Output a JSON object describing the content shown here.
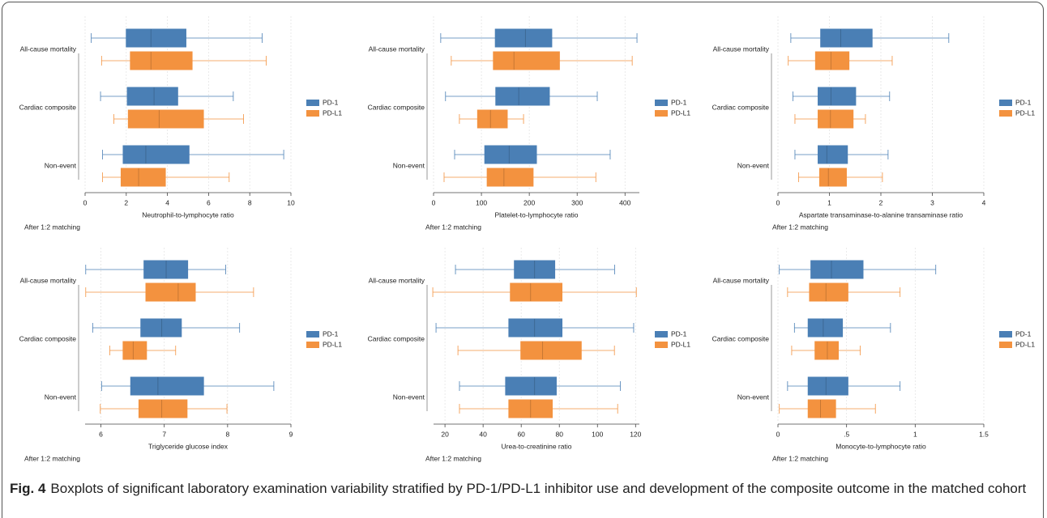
{
  "chart_data": [
    {
      "type": "box",
      "xlabel": "Neutrophil-to-lymphocyte ratio",
      "note": "After 1:2 matching",
      "categories": [
        "All-cause mortality",
        "Cardiac composite",
        "Non-event"
      ],
      "xlim": [
        0,
        10
      ],
      "xticks": [
        0,
        2,
        4,
        6,
        8,
        10
      ],
      "grid": true,
      "series": [
        {
          "name": "PD-1",
          "color": "#4a7fb5",
          "low": [
            0.3,
            0.75,
            0.85
          ],
          "q1": [
            2.0,
            2.05,
            1.85
          ],
          "median": [
            3.2,
            3.35,
            2.95
          ],
          "q3": [
            4.9,
            4.5,
            5.05
          ],
          "high": [
            8.6,
            7.2,
            9.65
          ]
        },
        {
          "name": "PD-L1",
          "color": "#f3923f",
          "low": [
            0.8,
            1.4,
            0.85
          ],
          "q1": [
            2.2,
            2.1,
            1.75
          ],
          "median": [
            3.2,
            3.6,
            2.6
          ],
          "q3": [
            5.2,
            5.75,
            3.9
          ],
          "high": [
            8.8,
            7.7,
            7.0
          ]
        }
      ]
    },
    {
      "type": "box",
      "xlabel": "Platelet-to-lymphocyte ratio",
      "note": "After 1:2 matching",
      "categories": [
        "All-cause mortality",
        "Cardiac composite",
        "Non-event"
      ],
      "xlim": [
        0,
        430
      ],
      "xticks": [
        0,
        100,
        200,
        300,
        400
      ],
      "grid": true,
      "series": [
        {
          "name": "PD-1",
          "color": "#4a7fb5",
          "low": [
            15,
            25,
            44
          ],
          "q1": [
            129,
            130,
            107
          ],
          "median": [
            192,
            178,
            158
          ],
          "q3": [
            247,
            242,
            215
          ],
          "high": [
            425,
            342,
            369
          ]
        },
        {
          "name": "PD-L1",
          "color": "#f3923f",
          "low": [
            37,
            54,
            22
          ],
          "q1": [
            125,
            92,
            112
          ],
          "median": [
            168,
            119,
            147
          ],
          "q3": [
            263,
            154,
            208
          ],
          "high": [
            415,
            188,
            339
          ]
        }
      ]
    },
    {
      "type": "box",
      "xlabel": "Aspartate transaminase-to-alanine transaminase ratio",
      "note": "After 1:2 matching",
      "categories": [
        "All-cause mortality",
        "Cardiac composite",
        "Non-event"
      ],
      "xlim": [
        0,
        4
      ],
      "xticks": [
        0,
        1,
        2,
        3,
        4
      ],
      "grid": true,
      "series": [
        {
          "name": "PD-1",
          "color": "#4a7fb5",
          "low": [
            0.25,
            0.29,
            0.33
          ],
          "q1": [
            0.83,
            0.78,
            0.78
          ],
          "median": [
            1.22,
            1.03,
            0.95
          ],
          "q3": [
            1.83,
            1.51,
            1.35
          ],
          "high": [
            3.32,
            2.17,
            2.14
          ]
        },
        {
          "name": "PD-L1",
          "color": "#f3923f",
          "low": [
            0.2,
            0.33,
            0.4
          ],
          "q1": [
            0.73,
            0.78,
            0.81
          ],
          "median": [
            1.03,
            1.02,
            0.98
          ],
          "q3": [
            1.38,
            1.46,
            1.33
          ],
          "high": [
            2.22,
            1.7,
            2.03
          ]
        }
      ]
    },
    {
      "type": "box",
      "xlabel": "Triglyceride glucose index",
      "note": "After 1:2 matching",
      "categories": [
        "All-cause mortality",
        "Cardiac composite",
        "Non-event"
      ],
      "xlim": [
        5.75,
        9
      ],
      "xticks": [
        6,
        7,
        8,
        9
      ],
      "grid": true,
      "series": [
        {
          "name": "PD-1",
          "color": "#4a7fb5",
          "low": [
            5.76,
            5.87,
            6.01
          ],
          "q1": [
            6.68,
            6.63,
            6.47
          ],
          "median": [
            7.03,
            6.96,
            6.9
          ],
          "q3": [
            7.37,
            7.27,
            7.62
          ],
          "high": [
            7.97,
            8.19,
            8.73
          ]
        },
        {
          "name": "PD-L1",
          "color": "#f3923f",
          "low": [
            5.76,
            6.14,
            5.99
          ],
          "q1": [
            6.71,
            6.35,
            6.6
          ],
          "median": [
            7.22,
            6.51,
            6.96
          ],
          "q3": [
            7.49,
            6.72,
            7.36
          ],
          "high": [
            8.41,
            7.18,
            7.99
          ]
        }
      ]
    },
    {
      "type": "box",
      "xlabel": "Urea-to-creatinine ratio",
      "note": "After 1:2 matching",
      "categories": [
        "All-cause mortality",
        "Cardiac composite",
        "Non-event"
      ],
      "xlim": [
        14,
        122
      ],
      "xticks": [
        20,
        40,
        60,
        80,
        100,
        120
      ],
      "grid": true,
      "series": [
        {
          "name": "PD-1",
          "color": "#4a7fb5",
          "low": [
            25.5,
            15.3,
            27.6
          ],
          "q1": [
            56.4,
            53.5,
            51.8
          ],
          "median": [
            67,
            67,
            67
          ],
          "q3": [
            77.6,
            81.4,
            78.4
          ],
          "high": [
            109,
            119,
            112
          ]
        },
        {
          "name": "PD-L1",
          "color": "#f3923f",
          "low": [
            13.6,
            26.8,
            27.6
          ],
          "q1": [
            54.3,
            59.8,
            53.5
          ],
          "median": [
            64.9,
            71.2,
            64.9
          ],
          "q3": [
            81.4,
            91.5,
            76.3
          ],
          "high": [
            120.4,
            108.9,
            110.6
          ]
        }
      ]
    },
    {
      "type": "box",
      "xlabel": "Monocyte-to-lymphocyte ratio",
      "note": "After 1:2 matching",
      "categories": [
        "All-cause mortality",
        "Cardiac composite",
        "Non-event"
      ],
      "xlim": [
        0,
        1.5
      ],
      "xticks": [
        0,
        {
          "value": 0.5,
          "label": ".5"
        },
        1,
        1.5
      ],
      "grid": true,
      "series": [
        {
          "name": "PD-1",
          "color": "#4a7fb5",
          "low": [
            0.01,
            0.12,
            0.07
          ],
          "q1": [
            0.24,
            0.22,
            0.22
          ],
          "median": [
            0.39,
            0.33,
            0.35
          ],
          "q3": [
            0.62,
            0.47,
            0.51
          ],
          "high": [
            1.15,
            0.82,
            0.89
          ]
        },
        {
          "name": "PD-L1",
          "color": "#f3923f",
          "low": [
            0.07,
            0.1,
            0.01
          ],
          "q1": [
            0.23,
            0.27,
            0.22
          ],
          "median": [
            0.35,
            0.36,
            0.31
          ],
          "q3": [
            0.51,
            0.44,
            0.42
          ],
          "high": [
            0.89,
            0.6,
            0.71
          ]
        }
      ]
    }
  ],
  "caption": {
    "label": "Fig. 4",
    "text": "Boxplots of significant laboratory examination variability stratified by PD-1/PD-L1 inhibitor use and development of the composite outcome in the matched cohort"
  }
}
